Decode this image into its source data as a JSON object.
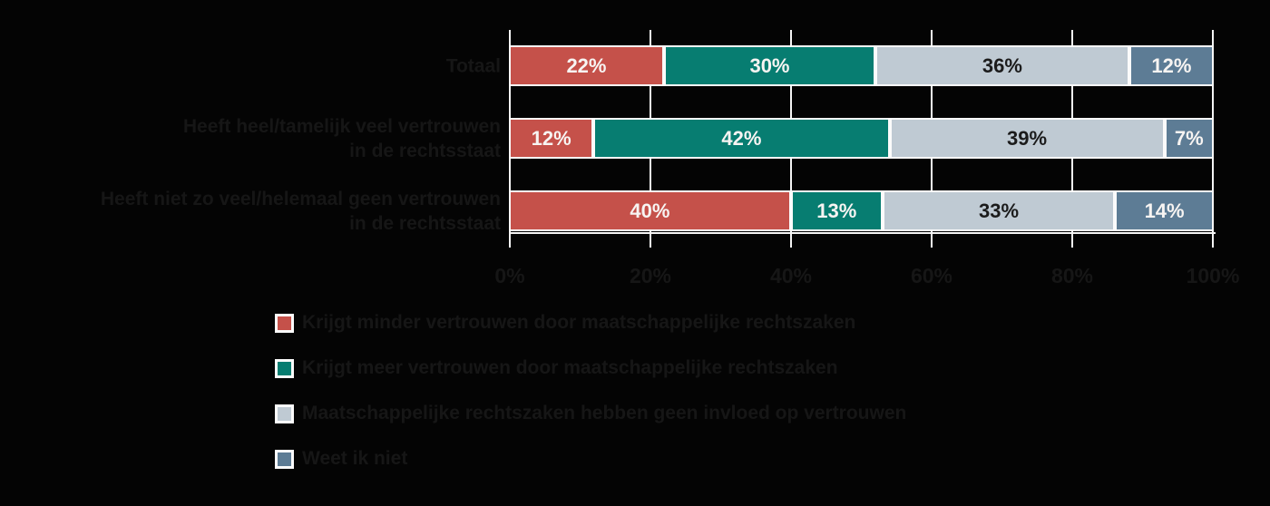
{
  "chart_data": {
    "type": "bar",
    "orientation": "horizontal",
    "stacked": true,
    "title": "",
    "categories": [
      {
        "lines": [
          "Totaal"
        ]
      },
      {
        "lines": [
          "Heeft heel/tamelijk veel vertrouwen",
          "in de rechtsstaat"
        ]
      },
      {
        "lines": [
          "Heeft niet zo veel/helemaal geen vertrouwen",
          "in de rechtsstaat"
        ]
      }
    ],
    "series": [
      {
        "name": "Krijgt minder vertrouwen door maatschappelijke rechtszaken",
        "color": "#C5514A",
        "label_color": "#F7F4F2",
        "values": [
          22,
          12,
          40
        ]
      },
      {
        "name": "Krijgt meer vertrouwen door maatschappelijke rechtszaken",
        "color": "#077D71",
        "label_color": "#F7F4F2",
        "values": [
          30,
          42,
          13
        ]
      },
      {
        "name": "Maatschappelijke rechtszaken hebben geen invloed op vertrouwen",
        "color": "#BFCAD3",
        "label_color": "#1B1B1B",
        "values": [
          36,
          39,
          33
        ]
      },
      {
        "name": "Weet ik niet",
        "color": "#5D7C95",
        "label_color": "#F7F4F2",
        "values": [
          12,
          7,
          14
        ]
      }
    ],
    "value_suffix": "%",
    "x_axis": {
      "ticks": [
        "0%",
        "20%",
        "40%",
        "60%",
        "80%",
        "100%"
      ],
      "min": 0,
      "max": 100
    },
    "grid": true,
    "legend_position": "bottom-left",
    "colors": {
      "background": "#040404",
      "muted_text": "#161616",
      "grid_line": "#F5F5F5",
      "bar_border": "#FBFBFB"
    }
  }
}
